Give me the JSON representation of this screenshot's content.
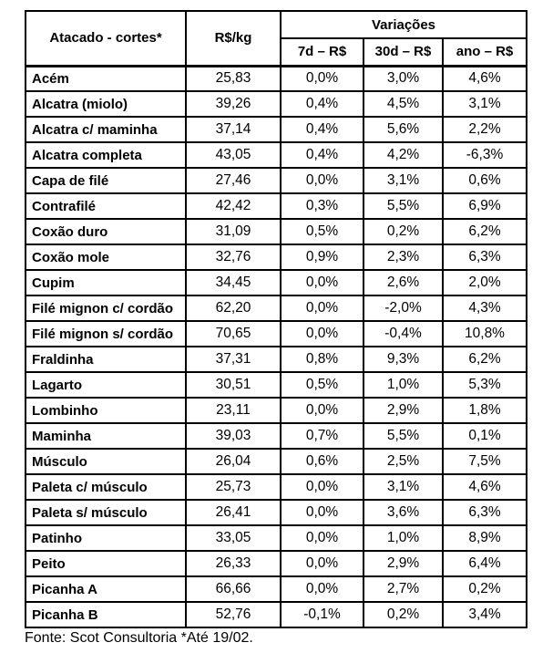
{
  "colors": {
    "background": "#ffffff",
    "text": "#000000",
    "border": "#000000"
  },
  "chart_data": {
    "type": "table",
    "title": "Atacado - cortes*",
    "header": {
      "col_cuts": "Atacado - cortes*",
      "col_price": "R$/kg",
      "col_variations": "Variações",
      "sub_cols": [
        "7d – R$",
        "30d – R$",
        "ano – R$"
      ]
    },
    "rows": [
      {
        "name": "Acém",
        "price": "25,83",
        "var_7d": "0,0%",
        "var_30d": "3,0%",
        "var_ano": "4,6%"
      },
      {
        "name": "Alcatra (miolo)",
        "price": "39,26",
        "var_7d": "0,4%",
        "var_30d": "4,5%",
        "var_ano": "3,1%"
      },
      {
        "name": "Alcatra c/ maminha",
        "price": "37,14",
        "var_7d": "0,4%",
        "var_30d": "5,6%",
        "var_ano": "2,2%"
      },
      {
        "name": "Alcatra completa",
        "price": "43,05",
        "var_7d": "0,4%",
        "var_30d": "4,2%",
        "var_ano": "-6,3%"
      },
      {
        "name": "Capa de filé",
        "price": "27,46",
        "var_7d": "0,0%",
        "var_30d": "3,1%",
        "var_ano": "0,6%"
      },
      {
        "name": "Contrafilé",
        "price": "42,42",
        "var_7d": "0,3%",
        "var_30d": "5,5%",
        "var_ano": "6,9%"
      },
      {
        "name": "Coxão duro",
        "price": "31,09",
        "var_7d": "0,5%",
        "var_30d": "0,2%",
        "var_ano": "6,2%"
      },
      {
        "name": "Coxão mole",
        "price": "32,76",
        "var_7d": "0,9%",
        "var_30d": "2,3%",
        "var_ano": "6,3%"
      },
      {
        "name": "Cupim",
        "price": "34,45",
        "var_7d": "0,0%",
        "var_30d": "2,6%",
        "var_ano": "2,0%"
      },
      {
        "name": "Filé mignon c/ cordão",
        "price": "62,20",
        "var_7d": "0,0%",
        "var_30d": "-2,0%",
        "var_ano": "4,3%"
      },
      {
        "name": "Filé mignon s/ cordão",
        "price": "70,65",
        "var_7d": "0,0%",
        "var_30d": "-0,4%",
        "var_ano": "10,8%"
      },
      {
        "name": "Fraldinha",
        "price": "37,31",
        "var_7d": "0,8%",
        "var_30d": "9,3%",
        "var_ano": "6,2%"
      },
      {
        "name": "Lagarto",
        "price": "30,51",
        "var_7d": "0,5%",
        "var_30d": "1,0%",
        "var_ano": "5,3%"
      },
      {
        "name": "Lombinho",
        "price": "23,11",
        "var_7d": "0,0%",
        "var_30d": "2,9%",
        "var_ano": "1,8%"
      },
      {
        "name": "Maminha",
        "price": "39,03",
        "var_7d": "0,7%",
        "var_30d": "5,5%",
        "var_ano": "0,1%"
      },
      {
        "name": "Músculo",
        "price": "26,04",
        "var_7d": "0,6%",
        "var_30d": "2,5%",
        "var_ano": "7,5%"
      },
      {
        "name": "Paleta c/ músculo",
        "price": "25,73",
        "var_7d": "0,0%",
        "var_30d": "3,1%",
        "var_ano": "4,6%"
      },
      {
        "name": "Paleta s/ músculo",
        "price": "26,41",
        "var_7d": "0,0%",
        "var_30d": "3,6%",
        "var_ano": "6,3%"
      },
      {
        "name": "Patinho",
        "price": "33,05",
        "var_7d": "0,0%",
        "var_30d": "1,0%",
        "var_ano": "8,9%"
      },
      {
        "name": "Peito",
        "price": "26,33",
        "var_7d": "0,0%",
        "var_30d": "2,9%",
        "var_ano": "6,4%"
      },
      {
        "name": "Picanha A",
        "price": "66,66",
        "var_7d": "0,0%",
        "var_30d": "2,7%",
        "var_ano": "0,2%"
      },
      {
        "name": "Picanha B",
        "price": "52,76",
        "var_7d": "-0,1%",
        "var_30d": "0,2%",
        "var_ano": "3,4%"
      }
    ],
    "footer": "Fonte: Scot Consultoria *Até 19/02."
  }
}
